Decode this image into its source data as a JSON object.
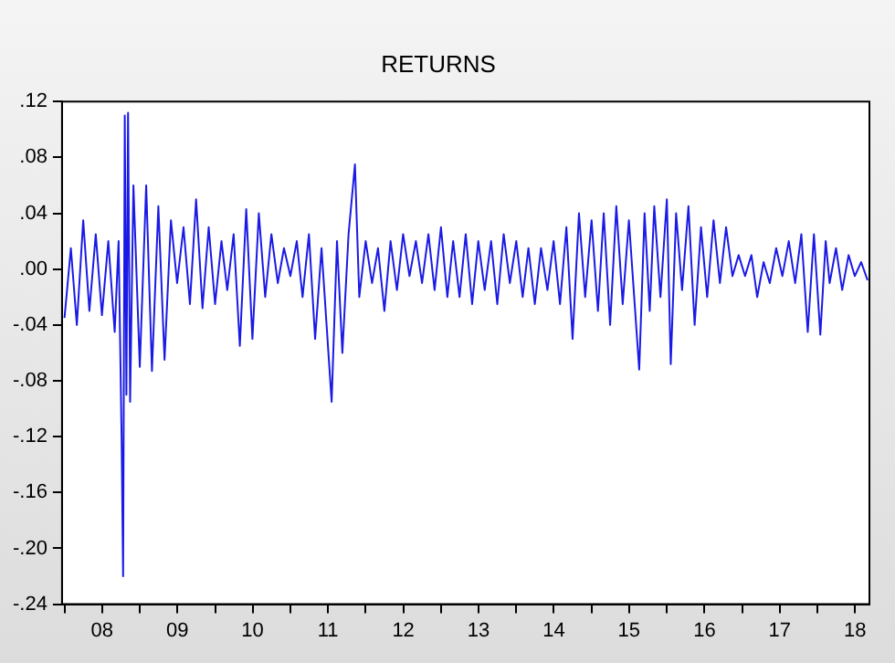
{
  "chart_data": {
    "type": "line",
    "title": "RETURNS",
    "x": [
      "2008-01-01",
      "2008-02-01",
      "2008-03-01",
      "2008-04-01",
      "2008-05-01",
      "2008-06-01",
      "2008-07-01",
      "2008-08-01",
      "2008-09-01",
      "2008-09-20",
      "2008-10-05",
      "2008-10-12",
      "2008-10-20",
      "2008-10-28",
      "2008-11-05",
      "2008-11-15",
      "2008-12-01",
      "2009-01-01",
      "2009-02-01",
      "2009-03-01",
      "2009-04-01",
      "2009-05-01",
      "2009-06-01",
      "2009-07-01",
      "2009-08-01",
      "2009-09-01",
      "2009-10-01",
      "2009-11-01",
      "2009-12-01",
      "2010-01-01",
      "2010-02-01",
      "2010-03-01",
      "2010-04-01",
      "2010-05-01",
      "2010-06-01",
      "2010-07-01",
      "2010-08-01",
      "2010-09-01",
      "2010-10-01",
      "2010-11-01",
      "2010-12-01",
      "2011-01-01",
      "2011-02-01",
      "2011-03-01",
      "2011-04-01",
      "2011-05-01",
      "2011-06-01",
      "2011-07-20",
      "2011-08-15",
      "2011-09-10",
      "2011-10-10",
      "2011-11-10",
      "2011-12-01",
      "2012-01-01",
      "2012-02-01",
      "2012-03-01",
      "2012-04-01",
      "2012-05-01",
      "2012-06-01",
      "2012-07-01",
      "2012-08-01",
      "2012-09-01",
      "2012-10-01",
      "2012-11-01",
      "2012-12-01",
      "2013-01-01",
      "2013-02-01",
      "2013-03-01",
      "2013-04-01",
      "2013-05-01",
      "2013-06-01",
      "2013-07-01",
      "2013-08-01",
      "2013-09-01",
      "2013-10-01",
      "2013-11-01",
      "2013-12-01",
      "2014-01-01",
      "2014-02-01",
      "2014-03-01",
      "2014-04-01",
      "2014-05-01",
      "2014-06-01",
      "2014-07-01",
      "2014-08-01",
      "2014-09-01",
      "2014-10-01",
      "2014-11-01",
      "2014-12-01",
      "2015-01-01",
      "2015-02-01",
      "2015-03-01",
      "2015-04-01",
      "2015-05-01",
      "2015-06-01",
      "2015-07-01",
      "2015-08-20",
      "2015-09-15",
      "2015-10-10",
      "2015-11-01",
      "2015-12-01",
      "2016-01-01",
      "2016-01-20",
      "2016-02-15",
      "2016-03-15",
      "2016-04-15",
      "2016-05-15",
      "2016-06-15",
      "2016-07-15",
      "2016-08-15",
      "2016-09-15",
      "2016-10-15",
      "2016-11-15",
      "2016-12-15",
      "2017-01-15",
      "2017-02-15",
      "2017-03-15",
      "2017-04-15",
      "2017-05-15",
      "2017-06-15",
      "2017-07-15",
      "2017-08-15",
      "2017-09-15",
      "2017-10-15",
      "2017-11-15",
      "2017-12-15",
      "2018-01-15",
      "2018-02-10",
      "2018-03-01",
      "2018-04-01",
      "2018-05-01",
      "2018-06-01",
      "2018-07-01",
      "2018-08-01",
      "2018-09-01"
    ],
    "series": [
      {
        "color": "#1a1ae6",
        "values": [
          -0.035,
          0.015,
          -0.04,
          0.035,
          -0.03,
          0.025,
          -0.033,
          0.02,
          -0.045,
          0.02,
          -0.125,
          -0.22,
          0.11,
          -0.09,
          0.112,
          -0.095,
          0.06,
          -0.07,
          0.06,
          -0.073,
          0.045,
          -0.065,
          0.035,
          -0.01,
          0.03,
          -0.025,
          0.05,
          -0.028,
          0.03,
          -0.025,
          0.02,
          -0.015,
          0.025,
          -0.055,
          0.043,
          -0.05,
          0.04,
          -0.02,
          0.025,
          -0.01,
          0.015,
          -0.005,
          0.02,
          -0.02,
          0.025,
          -0.05,
          0.015,
          -0.095,
          0.02,
          -0.06,
          0.025,
          0.075,
          -0.02,
          0.02,
          -0.01,
          0.015,
          -0.03,
          0.02,
          -0.015,
          0.025,
          -0.005,
          0.02,
          -0.01,
          0.025,
          -0.015,
          0.03,
          -0.02,
          0.02,
          -0.02,
          0.025,
          -0.025,
          0.02,
          -0.015,
          0.02,
          -0.025,
          0.025,
          -0.01,
          0.02,
          -0.02,
          0.015,
          -0.025,
          0.015,
          -0.015,
          0.02,
          -0.025,
          0.03,
          -0.05,
          0.04,
          -0.02,
          0.035,
          -0.03,
          0.04,
          -0.04,
          0.045,
          -0.025,
          0.035,
          -0.072,
          0.04,
          -0.03,
          0.045,
          -0.02,
          0.05,
          -0.068,
          0.04,
          -0.015,
          0.045,
          -0.04,
          0.03,
          -0.02,
          0.035,
          -0.01,
          0.03,
          -0.005,
          0.01,
          -0.005,
          0.01,
          -0.02,
          0.005,
          -0.01,
          0.015,
          -0.005,
          0.02,
          -0.01,
          0.025,
          -0.045,
          0.025,
          -0.047,
          0.02,
          -0.01,
          0.015,
          -0.015,
          0.01,
          -0.005,
          0.005,
          -0.008
        ]
      }
    ],
    "xlim": [
      "2007-12-20",
      "2018-09-10"
    ],
    "xticks": [
      {
        "value": "2008-01-01",
        "label": null
      },
      {
        "value": "2008-07-02",
        "label": "08"
      },
      {
        "value": "2009-01-01",
        "label": null
      },
      {
        "value": "2009-07-02",
        "label": "09"
      },
      {
        "value": "2010-01-01",
        "label": null
      },
      {
        "value": "2010-07-02",
        "label": "10"
      },
      {
        "value": "2011-01-01",
        "label": null
      },
      {
        "value": "2011-07-02",
        "label": "11"
      },
      {
        "value": "2012-01-01",
        "label": null
      },
      {
        "value": "2012-07-02",
        "label": "12"
      },
      {
        "value": "2013-01-01",
        "label": null
      },
      {
        "value": "2013-07-02",
        "label": "13"
      },
      {
        "value": "2014-01-01",
        "label": null
      },
      {
        "value": "2014-07-02",
        "label": "14"
      },
      {
        "value": "2015-01-01",
        "label": null
      },
      {
        "value": "2015-07-02",
        "label": "15"
      },
      {
        "value": "2016-01-01",
        "label": null
      },
      {
        "value": "2016-07-02",
        "label": "16"
      },
      {
        "value": "2017-01-01",
        "label": null
      },
      {
        "value": "2017-07-02",
        "label": "17"
      },
      {
        "value": "2018-01-01",
        "label": null
      },
      {
        "value": "2018-07-02",
        "label": "18"
      }
    ],
    "ylim": [
      -0.24,
      0.12
    ],
    "yticks": [
      {
        "value": -0.24,
        "label": "-.24"
      },
      {
        "value": -0.2,
        "label": "-.20"
      },
      {
        "value": -0.16,
        "label": "-.16"
      },
      {
        "value": -0.12,
        "label": "-.12"
      },
      {
        "value": -0.08,
        "label": "-.08"
      },
      {
        "value": -0.04,
        "label": "-.04"
      },
      {
        "value": 0,
        "label": ".00"
      },
      {
        "value": 0.04,
        "label": ".04"
      },
      {
        "value": 0.08,
        "label": ".08"
      },
      {
        "value": 0.12,
        "label": ".12"
      }
    ],
    "grid": false,
    "legend": false,
    "marker": "none",
    "line_style": "solid"
  }
}
